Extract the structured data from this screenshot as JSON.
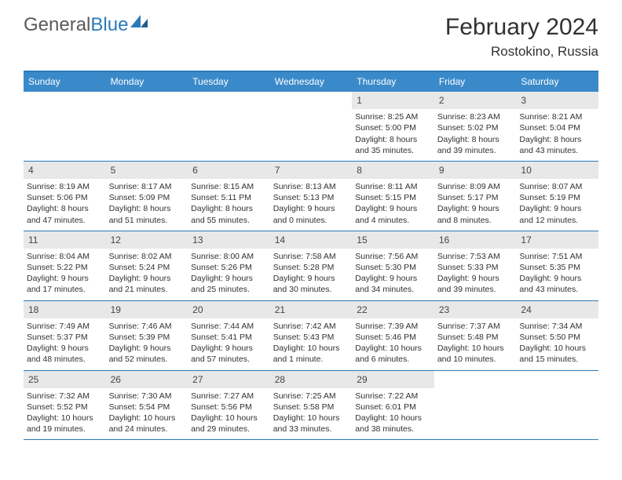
{
  "colors": {
    "header_bg": "#3a8aca",
    "border": "#2a7ab9",
    "daynum_bg": "#e8e8e8",
    "text": "#313131",
    "white": "#ffffff"
  },
  "logo": {
    "part1": "General",
    "part2": "Blue"
  },
  "title": "February 2024",
  "location": "Rostokino, Russia",
  "day_headers": [
    "Sunday",
    "Monday",
    "Tuesday",
    "Wednesday",
    "Thursday",
    "Friday",
    "Saturday"
  ],
  "weeks": [
    [
      {
        "n": "",
        "sunrise": "",
        "sunset": "",
        "daylight1": "",
        "daylight2": ""
      },
      {
        "n": "",
        "sunrise": "",
        "sunset": "",
        "daylight1": "",
        "daylight2": ""
      },
      {
        "n": "",
        "sunrise": "",
        "sunset": "",
        "daylight1": "",
        "daylight2": ""
      },
      {
        "n": "",
        "sunrise": "",
        "sunset": "",
        "daylight1": "",
        "daylight2": ""
      },
      {
        "n": "1",
        "sunrise": "Sunrise: 8:25 AM",
        "sunset": "Sunset: 5:00 PM",
        "daylight1": "Daylight: 8 hours",
        "daylight2": "and 35 minutes."
      },
      {
        "n": "2",
        "sunrise": "Sunrise: 8:23 AM",
        "sunset": "Sunset: 5:02 PM",
        "daylight1": "Daylight: 8 hours",
        "daylight2": "and 39 minutes."
      },
      {
        "n": "3",
        "sunrise": "Sunrise: 8:21 AM",
        "sunset": "Sunset: 5:04 PM",
        "daylight1": "Daylight: 8 hours",
        "daylight2": "and 43 minutes."
      }
    ],
    [
      {
        "n": "4",
        "sunrise": "Sunrise: 8:19 AM",
        "sunset": "Sunset: 5:06 PM",
        "daylight1": "Daylight: 8 hours",
        "daylight2": "and 47 minutes."
      },
      {
        "n": "5",
        "sunrise": "Sunrise: 8:17 AM",
        "sunset": "Sunset: 5:09 PM",
        "daylight1": "Daylight: 8 hours",
        "daylight2": "and 51 minutes."
      },
      {
        "n": "6",
        "sunrise": "Sunrise: 8:15 AM",
        "sunset": "Sunset: 5:11 PM",
        "daylight1": "Daylight: 8 hours",
        "daylight2": "and 55 minutes."
      },
      {
        "n": "7",
        "sunrise": "Sunrise: 8:13 AM",
        "sunset": "Sunset: 5:13 PM",
        "daylight1": "Daylight: 9 hours",
        "daylight2": "and 0 minutes."
      },
      {
        "n": "8",
        "sunrise": "Sunrise: 8:11 AM",
        "sunset": "Sunset: 5:15 PM",
        "daylight1": "Daylight: 9 hours",
        "daylight2": "and 4 minutes."
      },
      {
        "n": "9",
        "sunrise": "Sunrise: 8:09 AM",
        "sunset": "Sunset: 5:17 PM",
        "daylight1": "Daylight: 9 hours",
        "daylight2": "and 8 minutes."
      },
      {
        "n": "10",
        "sunrise": "Sunrise: 8:07 AM",
        "sunset": "Sunset: 5:19 PM",
        "daylight1": "Daylight: 9 hours",
        "daylight2": "and 12 minutes."
      }
    ],
    [
      {
        "n": "11",
        "sunrise": "Sunrise: 8:04 AM",
        "sunset": "Sunset: 5:22 PM",
        "daylight1": "Daylight: 9 hours",
        "daylight2": "and 17 minutes."
      },
      {
        "n": "12",
        "sunrise": "Sunrise: 8:02 AM",
        "sunset": "Sunset: 5:24 PM",
        "daylight1": "Daylight: 9 hours",
        "daylight2": "and 21 minutes."
      },
      {
        "n": "13",
        "sunrise": "Sunrise: 8:00 AM",
        "sunset": "Sunset: 5:26 PM",
        "daylight1": "Daylight: 9 hours",
        "daylight2": "and 25 minutes."
      },
      {
        "n": "14",
        "sunrise": "Sunrise: 7:58 AM",
        "sunset": "Sunset: 5:28 PM",
        "daylight1": "Daylight: 9 hours",
        "daylight2": "and 30 minutes."
      },
      {
        "n": "15",
        "sunrise": "Sunrise: 7:56 AM",
        "sunset": "Sunset: 5:30 PM",
        "daylight1": "Daylight: 9 hours",
        "daylight2": "and 34 minutes."
      },
      {
        "n": "16",
        "sunrise": "Sunrise: 7:53 AM",
        "sunset": "Sunset: 5:33 PM",
        "daylight1": "Daylight: 9 hours",
        "daylight2": "and 39 minutes."
      },
      {
        "n": "17",
        "sunrise": "Sunrise: 7:51 AM",
        "sunset": "Sunset: 5:35 PM",
        "daylight1": "Daylight: 9 hours",
        "daylight2": "and 43 minutes."
      }
    ],
    [
      {
        "n": "18",
        "sunrise": "Sunrise: 7:49 AM",
        "sunset": "Sunset: 5:37 PM",
        "daylight1": "Daylight: 9 hours",
        "daylight2": "and 48 minutes."
      },
      {
        "n": "19",
        "sunrise": "Sunrise: 7:46 AM",
        "sunset": "Sunset: 5:39 PM",
        "daylight1": "Daylight: 9 hours",
        "daylight2": "and 52 minutes."
      },
      {
        "n": "20",
        "sunrise": "Sunrise: 7:44 AM",
        "sunset": "Sunset: 5:41 PM",
        "daylight1": "Daylight: 9 hours",
        "daylight2": "and 57 minutes."
      },
      {
        "n": "21",
        "sunrise": "Sunrise: 7:42 AM",
        "sunset": "Sunset: 5:43 PM",
        "daylight1": "Daylight: 10 hours",
        "daylight2": "and 1 minute."
      },
      {
        "n": "22",
        "sunrise": "Sunrise: 7:39 AM",
        "sunset": "Sunset: 5:46 PM",
        "daylight1": "Daylight: 10 hours",
        "daylight2": "and 6 minutes."
      },
      {
        "n": "23",
        "sunrise": "Sunrise: 7:37 AM",
        "sunset": "Sunset: 5:48 PM",
        "daylight1": "Daylight: 10 hours",
        "daylight2": "and 10 minutes."
      },
      {
        "n": "24",
        "sunrise": "Sunrise: 7:34 AM",
        "sunset": "Sunset: 5:50 PM",
        "daylight1": "Daylight: 10 hours",
        "daylight2": "and 15 minutes."
      }
    ],
    [
      {
        "n": "25",
        "sunrise": "Sunrise: 7:32 AM",
        "sunset": "Sunset: 5:52 PM",
        "daylight1": "Daylight: 10 hours",
        "daylight2": "and 19 minutes."
      },
      {
        "n": "26",
        "sunrise": "Sunrise: 7:30 AM",
        "sunset": "Sunset: 5:54 PM",
        "daylight1": "Daylight: 10 hours",
        "daylight2": "and 24 minutes."
      },
      {
        "n": "27",
        "sunrise": "Sunrise: 7:27 AM",
        "sunset": "Sunset: 5:56 PM",
        "daylight1": "Daylight: 10 hours",
        "daylight2": "and 29 minutes."
      },
      {
        "n": "28",
        "sunrise": "Sunrise: 7:25 AM",
        "sunset": "Sunset: 5:58 PM",
        "daylight1": "Daylight: 10 hours",
        "daylight2": "and 33 minutes."
      },
      {
        "n": "29",
        "sunrise": "Sunrise: 7:22 AM",
        "sunset": "Sunset: 6:01 PM",
        "daylight1": "Daylight: 10 hours",
        "daylight2": "and 38 minutes."
      },
      {
        "n": "",
        "sunrise": "",
        "sunset": "",
        "daylight1": "",
        "daylight2": ""
      },
      {
        "n": "",
        "sunrise": "",
        "sunset": "",
        "daylight1": "",
        "daylight2": ""
      }
    ]
  ]
}
